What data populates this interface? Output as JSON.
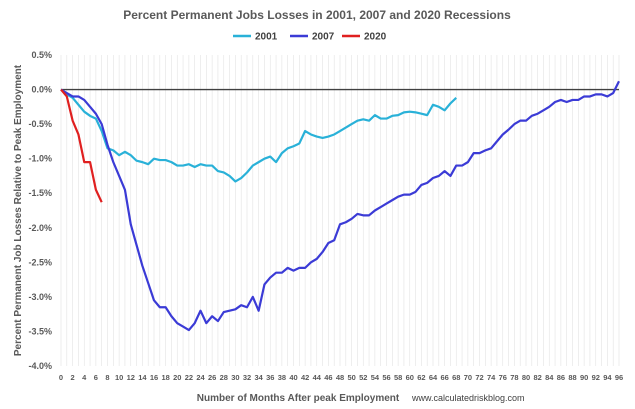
{
  "chart_data": {
    "type": "line",
    "title": "Percent Permanent Jobs Losses in 2001, 2007 and 2020 Recessions",
    "xlabel": "Number of Months After peak Employment",
    "ylabel": "Percent Permanent Job Losses Relative to Peak Employment",
    "credit": "www.calculatedriskblog.com",
    "xlim": [
      0,
      96
    ],
    "ylim": [
      -4.0,
      0.5
    ],
    "x_ticks": [
      0,
      2,
      4,
      6,
      8,
      10,
      12,
      14,
      16,
      18,
      20,
      22,
      24,
      26,
      28,
      30,
      32,
      34,
      36,
      38,
      40,
      42,
      44,
      46,
      48,
      50,
      52,
      54,
      56,
      58,
      60,
      62,
      64,
      66,
      68,
      70,
      72,
      74,
      76,
      78,
      80,
      82,
      84,
      86,
      88,
      90,
      92,
      94,
      96
    ],
    "y_ticks": [
      0.5,
      0.0,
      -0.5,
      -1.0,
      -1.5,
      -2.0,
      -2.5,
      -3.0,
      -3.5,
      -4.0
    ],
    "y_tick_labels": [
      "0.5%",
      "0.0%",
      "-0.5%",
      "-1.0%",
      "-1.5%",
      "-2.0%",
      "-2.5%",
      "-3.0%",
      "-3.5%",
      "-4.0%"
    ],
    "grid": "vertical",
    "legend_position": "top-center",
    "series": [
      {
        "name": "2001",
        "color": "#29b1d8",
        "values": [
          0,
          -0.07,
          -0.12,
          -0.22,
          -0.32,
          -0.38,
          -0.42,
          -0.6,
          -0.85,
          -0.88,
          -0.95,
          -0.9,
          -0.95,
          -1.03,
          -1.05,
          -1.08,
          -1.0,
          -1.02,
          -1.02,
          -1.05,
          -1.1,
          -1.1,
          -1.08,
          -1.12,
          -1.08,
          -1.1,
          -1.1,
          -1.18,
          -1.2,
          -1.25,
          -1.33,
          -1.28,
          -1.2,
          -1.1,
          -1.05,
          -1.0,
          -0.97,
          -1.05,
          -0.92,
          -0.85,
          -0.82,
          -0.78,
          -0.6,
          -0.65,
          -0.68,
          -0.7,
          -0.68,
          -0.65,
          -0.6,
          -0.55,
          -0.5,
          -0.45,
          -0.43,
          -0.45,
          -0.37,
          -0.42,
          -0.42,
          -0.38,
          -0.37,
          -0.33,
          -0.32,
          -0.33,
          -0.35,
          -0.37,
          -0.22,
          -0.25,
          -0.3,
          -0.2,
          -0.12
        ]
      },
      {
        "name": "2007",
        "color": "#3b3bd6",
        "values": [
          0,
          -0.05,
          -0.1,
          -0.1,
          -0.15,
          -0.25,
          -0.35,
          -0.5,
          -0.8,
          -1.05,
          -1.25,
          -1.45,
          -1.95,
          -2.25,
          -2.55,
          -2.8,
          -3.05,
          -3.15,
          -3.15,
          -3.28,
          -3.38,
          -3.43,
          -3.48,
          -3.38,
          -3.2,
          -3.38,
          -3.28,
          -3.35,
          -3.22,
          -3.2,
          -3.18,
          -3.12,
          -3.15,
          -3.0,
          -3.2,
          -2.82,
          -2.72,
          -2.65,
          -2.65,
          -2.58,
          -2.62,
          -2.58,
          -2.58,
          -2.5,
          -2.45,
          -2.35,
          -2.22,
          -2.18,
          -1.95,
          -1.92,
          -1.87,
          -1.8,
          -1.82,
          -1.82,
          -1.75,
          -1.7,
          -1.65,
          -1.6,
          -1.55,
          -1.52,
          -1.52,
          -1.48,
          -1.38,
          -1.35,
          -1.28,
          -1.25,
          -1.18,
          -1.25,
          -1.1,
          -1.1,
          -1.05,
          -0.92,
          -0.92,
          -0.88,
          -0.85,
          -0.75,
          -0.65,
          -0.58,
          -0.5,
          -0.45,
          -0.45,
          -0.38,
          -0.35,
          -0.3,
          -0.25,
          -0.18,
          -0.15,
          -0.18,
          -0.15,
          -0.15,
          -0.1,
          -0.1,
          -0.07,
          -0.07,
          -0.1,
          -0.05,
          0.12
        ]
      },
      {
        "name": "2020",
        "color": "#e02020",
        "values": [
          0,
          -0.1,
          -0.45,
          -0.65,
          -1.05,
          -1.05,
          -1.45,
          -1.63
        ]
      }
    ]
  }
}
